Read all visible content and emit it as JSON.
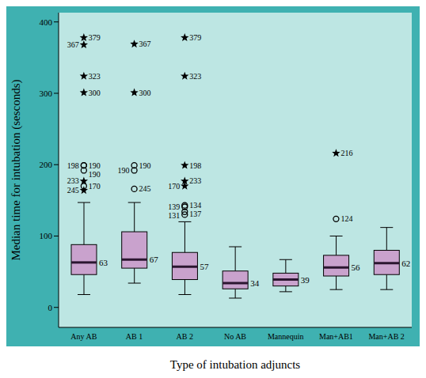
{
  "chart_data": {
    "type": "box",
    "y_label": "Median time for intubation (sesconds)",
    "x_label": "Type of intubation adjuncts",
    "categories": [
      "Any AB",
      "AB 1",
      "AB 2",
      "No AB",
      "Mannequin",
      "Man+AB1",
      "Man+AB 2"
    ],
    "ylim": [
      -28,
      413
    ],
    "yticks": [
      0,
      100,
      200,
      300,
      400
    ],
    "color": "#c9a2cd",
    "data_labels": true,
    "boxes": [
      {
        "whisker_low": 18,
        "q1": 46,
        "median": 63,
        "q3": 88,
        "whisker_high": 147,
        "outliers": [
          {
            "label": "379",
            "value": 378,
            "marker": "star"
          },
          {
            "label": "367",
            "value": 368,
            "marker": "star"
          },
          {
            "label": "323",
            "value": 324,
            "marker": "star"
          },
          {
            "label": "300",
            "value": 301,
            "marker": "star"
          },
          {
            "label": "190",
            "value": 199,
            "marker": "circle"
          },
          {
            "label": "198",
            "value": 199,
            "marker": "circle"
          },
          {
            "label": "190",
            "value": 192,
            "marker": "circle"
          },
          {
            "label": "233",
            "value": 177,
            "marker": "star"
          },
          {
            "label": "170",
            "value": 170,
            "marker": "circle"
          },
          {
            "label": "245",
            "value": 164,
            "marker": "star"
          }
        ]
      },
      {
        "whisker_low": 34,
        "q1": 55,
        "median": 67,
        "q3": 106,
        "whisker_high": 147,
        "outliers": [
          {
            "label": "367",
            "value": 369,
            "marker": "star"
          },
          {
            "label": "300",
            "value": 301,
            "marker": "star"
          },
          {
            "label": "190",
            "value": 199,
            "marker": "circle"
          },
          {
            "label": "190",
            "value": 192,
            "marker": "circle"
          },
          {
            "label": "245",
            "value": 166,
            "marker": "circle"
          }
        ]
      },
      {
        "whisker_low": 18,
        "q1": 39,
        "median": 57,
        "q3": 77,
        "whisker_high": 120,
        "outliers": [
          {
            "label": "379",
            "value": 378,
            "marker": "star"
          },
          {
            "label": "323",
            "value": 324,
            "marker": "star"
          },
          {
            "label": "198",
            "value": 199,
            "marker": "star"
          },
          {
            "label": "233",
            "value": 177,
            "marker": "star"
          },
          {
            "label": "170",
            "value": 170,
            "marker": "star"
          },
          {
            "label": "134",
            "value": 143,
            "marker": "circle"
          },
          {
            "label": "139",
            "value": 141,
            "marker": "circle"
          },
          {
            "label": "137",
            "value": 134,
            "marker": "circle"
          },
          {
            "label": "131",
            "value": 130,
            "marker": "circle"
          }
        ]
      },
      {
        "whisker_low": 13,
        "q1": 26,
        "median": 34,
        "q3": 51,
        "whisker_high": 85,
        "outliers": []
      },
      {
        "whisker_low": 22,
        "q1": 30,
        "median": 39,
        "q3": 48,
        "whisker_high": 67,
        "outliers": []
      },
      {
        "whisker_low": 25,
        "q1": 44,
        "median": 56,
        "q3": 73,
        "whisker_high": 100,
        "outliers": [
          {
            "label": "216",
            "value": 216,
            "marker": "star"
          },
          {
            "label": "124",
            "value": 124,
            "marker": "circle"
          }
        ]
      },
      {
        "whisker_low": 25,
        "q1": 46,
        "median": 62,
        "q3": 80,
        "whisker_high": 112,
        "outliers": []
      }
    ]
  }
}
